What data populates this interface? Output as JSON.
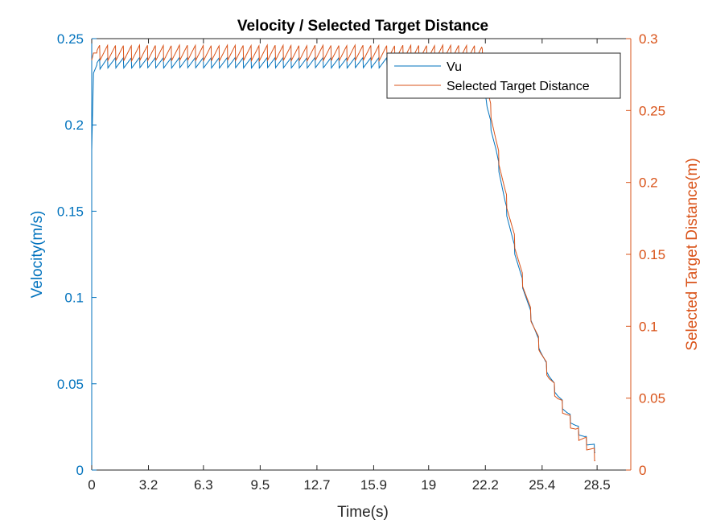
{
  "colors": {
    "left_axis": "#0072BD",
    "right_axis": "#D95319",
    "text": "#262626",
    "frame": "#262626"
  },
  "chart_data": {
    "type": "line",
    "title": "Velocity / Selected Target Distance",
    "xlabel": "Time(s)",
    "ylabel_left": "Velocity(m/s)",
    "ylabel_right": "Selected Target Distance(m)",
    "xlim": [
      0,
      30.4
    ],
    "ylim_left": [
      0,
      0.25
    ],
    "ylim_right": [
      0,
      0.3
    ],
    "xticks": [
      "0",
      "3.2",
      "6.3",
      "9.5",
      "12.7",
      "15.9",
      "19",
      "22.2",
      "25.4",
      "28.5"
    ],
    "yticks_left": [
      "0",
      "0.05",
      "0.1",
      "0.15",
      "0.2",
      "0.25"
    ],
    "yticks_right": [
      "0",
      "0.05",
      "0.1",
      "0.15",
      "0.2",
      "0.25",
      "0.3"
    ],
    "legend_position": "top-right",
    "series": [
      {
        "name": "Vu",
        "axis": "left",
        "color": "#0072BD",
        "x": [
          0,
          0.1,
          0.3,
          1,
          3,
          6,
          9,
          12,
          15,
          18,
          20,
          21.5,
          22,
          22.3,
          22.8,
          23.3,
          23.8,
          24.3,
          24.8,
          25.3,
          25.8,
          26.3,
          26.8,
          27.3,
          27.8,
          28.4
        ],
        "y": [
          0.185,
          0.23,
          0.235,
          0.236,
          0.236,
          0.236,
          0.236,
          0.236,
          0.236,
          0.236,
          0.236,
          0.236,
          0.236,
          0.21,
          0.185,
          0.155,
          0.13,
          0.108,
          0.088,
          0.07,
          0.055,
          0.043,
          0.033,
          0.025,
          0.018,
          0.012
        ]
      },
      {
        "name": "Selected Target Distance",
        "axis": "right",
        "color": "#D95319",
        "x": [
          0,
          0.1,
          0.3,
          1,
          3,
          6,
          9,
          12,
          15,
          18,
          20,
          21.5,
          22,
          22.3,
          22.8,
          23.3,
          23.8,
          24.3,
          24.8,
          25.3,
          25.8,
          26.3,
          26.8,
          27.3,
          27.8,
          28.4
        ],
        "y": [
          0.285,
          0.29,
          0.29,
          0.29,
          0.29,
          0.29,
          0.29,
          0.29,
          0.29,
          0.29,
          0.29,
          0.29,
          0.29,
          0.265,
          0.228,
          0.193,
          0.162,
          0.132,
          0.106,
          0.084,
          0.065,
          0.05,
          0.038,
          0.027,
          0.02,
          0.01
        ]
      }
    ]
  }
}
